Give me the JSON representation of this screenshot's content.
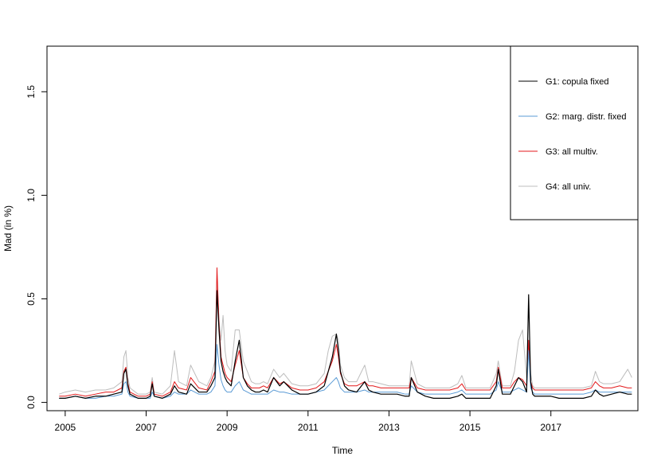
{
  "chart_data": {
    "type": "line",
    "title": "",
    "xlabel": "Time",
    "ylabel": "Mad (in %)",
    "xlim": [
      2004.55,
      2019.15
    ],
    "ylim": [
      -0.04,
      1.72
    ],
    "x_ticks": [
      2005,
      2007,
      2009,
      2011,
      2013,
      2015,
      2017
    ],
    "x_tick_labels": [
      "2005",
      "2007",
      "2009",
      "2011",
      "2013",
      "2015",
      "2017"
    ],
    "y_ticks": [
      0.0,
      0.5,
      1.0,
      1.5
    ],
    "y_tick_labels": [
      "0.0",
      "0.5",
      "1.0",
      "1.5"
    ],
    "grid": false,
    "legend_position": "top-right",
    "x": [
      2004.85,
      2005.0,
      2005.25,
      2005.5,
      2005.75,
      2006.0,
      2006.2,
      2006.4,
      2006.45,
      2006.5,
      2006.55,
      2006.6,
      2006.8,
      2007.0,
      2007.1,
      2007.15,
      2007.2,
      2007.4,
      2007.6,
      2007.7,
      2007.8,
      2008.0,
      2008.1,
      2008.3,
      2008.5,
      2008.6,
      2008.7,
      2008.75,
      2008.8,
      2008.85,
      2008.9,
      2008.95,
      2009.0,
      2009.1,
      2009.2,
      2009.3,
      2009.4,
      2009.5,
      2009.6,
      2009.7,
      2009.8,
      2009.9,
      2010.0,
      2010.15,
      2010.3,
      2010.4,
      2010.6,
      2010.8,
      2011.0,
      2011.2,
      2011.4,
      2011.5,
      2011.6,
      2011.7,
      2011.75,
      2011.8,
      2011.9,
      2012.0,
      2012.2,
      2012.4,
      2012.5,
      2012.6,
      2012.8,
      2013.0,
      2013.2,
      2013.4,
      2013.5,
      2013.55,
      2013.7,
      2013.9,
      2014.1,
      2014.3,
      2014.5,
      2014.7,
      2014.8,
      2014.9,
      2015.1,
      2015.3,
      2015.5,
      2015.65,
      2015.7,
      2015.8,
      2016.0,
      2016.1,
      2016.2,
      2016.3,
      2016.4,
      2016.45,
      2016.5,
      2016.55,
      2016.6,
      2016.7,
      2016.8,
      2017.0,
      2017.2,
      2017.4,
      2017.6,
      2017.8,
      2018.0,
      2018.1,
      2018.2,
      2018.3,
      2018.5,
      2018.7,
      2018.9,
      2019.0
    ],
    "series": [
      {
        "name": "G1: copula fixed",
        "color": "#000000",
        "values": [
          0.02,
          0.02,
          0.03,
          0.02,
          0.03,
          0.03,
          0.04,
          0.05,
          0.14,
          0.16,
          0.08,
          0.04,
          0.02,
          0.02,
          0.03,
          0.09,
          0.03,
          0.02,
          0.04,
          0.08,
          0.05,
          0.04,
          0.09,
          0.05,
          0.05,
          0.08,
          0.12,
          0.54,
          0.35,
          0.2,
          0.15,
          0.12,
          0.1,
          0.08,
          0.2,
          0.3,
          0.12,
          0.08,
          0.06,
          0.05,
          0.05,
          0.06,
          0.05,
          0.12,
          0.08,
          0.1,
          0.06,
          0.04,
          0.04,
          0.05,
          0.08,
          0.15,
          0.22,
          0.33,
          0.25,
          0.15,
          0.08,
          0.06,
          0.05,
          0.1,
          0.06,
          0.05,
          0.04,
          0.04,
          0.04,
          0.03,
          0.03,
          0.12,
          0.05,
          0.03,
          0.02,
          0.02,
          0.02,
          0.03,
          0.04,
          0.02,
          0.02,
          0.02,
          0.02,
          0.08,
          0.16,
          0.04,
          0.04,
          0.08,
          0.12,
          0.1,
          0.05,
          0.52,
          0.1,
          0.04,
          0.03,
          0.03,
          0.03,
          0.03,
          0.02,
          0.02,
          0.02,
          0.02,
          0.03,
          0.06,
          0.04,
          0.03,
          0.04,
          0.05,
          0.04,
          0.04
        ]
      },
      {
        "name": "G2: marg. distr. fixed",
        "color": "#5b9bd5",
        "values": [
          0.02,
          0.02,
          0.03,
          0.02,
          0.02,
          0.03,
          0.03,
          0.04,
          0.09,
          0.1,
          0.05,
          0.03,
          0.02,
          0.02,
          0.02,
          0.05,
          0.03,
          0.02,
          0.03,
          0.05,
          0.04,
          0.04,
          0.06,
          0.04,
          0.04,
          0.05,
          0.08,
          0.28,
          0.18,
          0.11,
          0.08,
          0.06,
          0.05,
          0.05,
          0.08,
          0.1,
          0.06,
          0.05,
          0.04,
          0.04,
          0.04,
          0.04,
          0.04,
          0.06,
          0.05,
          0.05,
          0.04,
          0.04,
          0.04,
          0.05,
          0.06,
          0.08,
          0.1,
          0.12,
          0.1,
          0.07,
          0.05,
          0.05,
          0.05,
          0.06,
          0.05,
          0.05,
          0.05,
          0.05,
          0.05,
          0.04,
          0.04,
          0.08,
          0.05,
          0.04,
          0.04,
          0.04,
          0.04,
          0.05,
          0.06,
          0.04,
          0.04,
          0.04,
          0.04,
          0.06,
          0.1,
          0.05,
          0.05,
          0.06,
          0.07,
          0.06,
          0.05,
          0.25,
          0.07,
          0.05,
          0.04,
          0.04,
          0.04,
          0.04,
          0.04,
          0.04,
          0.04,
          0.04,
          0.05,
          0.06,
          0.05,
          0.05,
          0.05,
          0.05,
          0.05,
          0.05
        ]
      },
      {
        "name": "G3: all multiv.",
        "color": "#e31a1c",
        "values": [
          0.03,
          0.03,
          0.04,
          0.03,
          0.04,
          0.05,
          0.05,
          0.07,
          0.15,
          0.17,
          0.09,
          0.05,
          0.03,
          0.03,
          0.04,
          0.1,
          0.04,
          0.03,
          0.05,
          0.1,
          0.07,
          0.06,
          0.12,
          0.07,
          0.06,
          0.1,
          0.15,
          0.65,
          0.38,
          0.22,
          0.18,
          0.14,
          0.12,
          0.1,
          0.18,
          0.25,
          0.12,
          0.09,
          0.07,
          0.07,
          0.07,
          0.08,
          0.07,
          0.12,
          0.09,
          0.1,
          0.07,
          0.06,
          0.06,
          0.07,
          0.1,
          0.15,
          0.2,
          0.28,
          0.22,
          0.14,
          0.09,
          0.08,
          0.08,
          0.1,
          0.08,
          0.08,
          0.07,
          0.07,
          0.07,
          0.07,
          0.07,
          0.12,
          0.07,
          0.06,
          0.06,
          0.06,
          0.06,
          0.07,
          0.09,
          0.06,
          0.06,
          0.06,
          0.06,
          0.1,
          0.17,
          0.07,
          0.07,
          0.1,
          0.12,
          0.11,
          0.08,
          0.3,
          0.1,
          0.07,
          0.06,
          0.06,
          0.06,
          0.06,
          0.06,
          0.06,
          0.06,
          0.06,
          0.07,
          0.1,
          0.08,
          0.07,
          0.07,
          0.08,
          0.07,
          0.07
        ]
      },
      {
        "name": "G4: all univ.",
        "color": "#bdbdbd",
        "values": [
          0.04,
          0.05,
          0.06,
          0.05,
          0.06,
          0.06,
          0.07,
          0.1,
          0.22,
          0.25,
          0.12,
          0.07,
          0.04,
          0.04,
          0.05,
          0.12,
          0.05,
          0.04,
          0.08,
          0.25,
          0.1,
          0.08,
          0.18,
          0.1,
          0.08,
          0.12,
          0.2,
          0.6,
          0.4,
          0.3,
          0.42,
          0.25,
          0.18,
          0.15,
          0.35,
          0.35,
          0.2,
          0.15,
          0.1,
          0.09,
          0.09,
          0.1,
          0.09,
          0.16,
          0.12,
          0.14,
          0.09,
          0.08,
          0.08,
          0.09,
          0.14,
          0.25,
          0.32,
          0.33,
          0.3,
          0.18,
          0.12,
          0.1,
          0.1,
          0.18,
          0.1,
          0.1,
          0.09,
          0.08,
          0.08,
          0.08,
          0.08,
          0.2,
          0.09,
          0.07,
          0.07,
          0.07,
          0.07,
          0.09,
          0.13,
          0.07,
          0.07,
          0.07,
          0.07,
          0.14,
          0.2,
          0.08,
          0.08,
          0.15,
          0.3,
          0.35,
          0.12,
          0.3,
          0.14,
          0.08,
          0.07,
          0.07,
          0.07,
          0.07,
          0.07,
          0.07,
          0.07,
          0.07,
          0.08,
          0.15,
          0.1,
          0.09,
          0.09,
          0.1,
          0.16,
          0.12
        ]
      }
    ]
  }
}
